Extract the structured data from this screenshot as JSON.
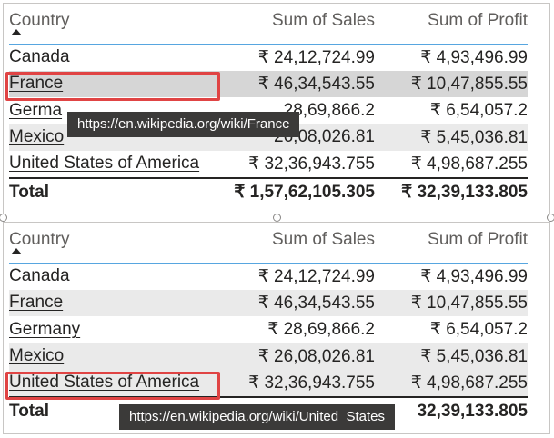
{
  "tables": [
    {
      "headers": {
        "country": "Country",
        "sales": "Sum of Sales",
        "profit": "Sum of Profit"
      },
      "rows": [
        {
          "country": "Canada",
          "sales": "₹ 24,12,724.99",
          "profit": "₹ 4,93,496.99"
        },
        {
          "country": "France",
          "sales": "₹ 46,34,543.55",
          "profit": "₹ 10,47,855.55"
        },
        {
          "country": "Germa",
          "sales": "28,69,866.2",
          "profit": "₹ 6,54,057.2"
        },
        {
          "country": "Mexico",
          "sales": "26,08,026.81",
          "profit": "₹ 5,45,036.81"
        },
        {
          "country": "United States of America",
          "sales": "₹ 32,36,943.755",
          "profit": "₹ 4,98,687.255"
        }
      ],
      "total": {
        "label": "Total",
        "sales": "₹ 1,57,62,105.305",
        "profit": "₹ 32,39,133.805"
      },
      "tooltip": "https://en.wikipedia.org/wiki/France"
    },
    {
      "headers": {
        "country": "Country",
        "sales": "Sum of Sales",
        "profit": "Sum of Profit"
      },
      "rows": [
        {
          "country": "Canada",
          "sales": "₹ 24,12,724.99",
          "profit": "₹ 4,93,496.99"
        },
        {
          "country": "France",
          "sales": "₹ 46,34,543.55",
          "profit": "₹ 10,47,855.55"
        },
        {
          "country": "Germany",
          "sales": "₹ 28,69,866.2",
          "profit": "₹ 6,54,057.2"
        },
        {
          "country": "Mexico",
          "sales": "₹ 26,08,026.81",
          "profit": "₹ 5,45,036.81"
        },
        {
          "country": "United States of America",
          "sales": "₹ 32,36,943.755",
          "profit": "₹ 4,98,687.255"
        }
      ],
      "total": {
        "label": "Total",
        "sales": "",
        "profit": "32,39,133.805"
      },
      "tooltip": "https://en.wikipedia.org/wiki/United_States"
    }
  ],
  "colors": {
    "highlight_box": "#e04444",
    "header_rule": "#57a6e0",
    "tooltip_bg": "#3b3a39"
  }
}
